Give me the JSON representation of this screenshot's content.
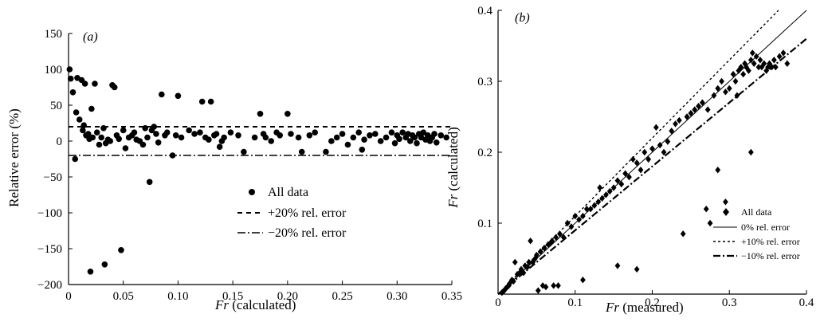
{
  "chart_data": [
    {
      "type": "scatter",
      "panel_label": "(a)",
      "xlabel_var": "Fr",
      "xlabel_rest": " (calculated)",
      "ylabel": "Relative error (%)",
      "xlim": [
        0,
        0.35
      ],
      "ylim": [
        -200,
        150
      ],
      "x_ticks": [
        0,
        0.05,
        0.1,
        0.15,
        0.2,
        0.25,
        0.3,
        0.35
      ],
      "x_tick_labels": [
        "0",
        "0.05",
        "0.10",
        "0.15",
        "0.20",
        "0.25",
        "0.30",
        "0.35"
      ],
      "y_ticks": [
        -200,
        -150,
        -100,
        -50,
        0,
        50,
        100,
        150
      ],
      "y_tick_labels": [
        "−200",
        "−150",
        "−100",
        "−50",
        "0",
        "50",
        "100",
        "150"
      ],
      "legend_position": "lower-center",
      "series": [
        {
          "name": "All data",
          "marker": "circle",
          "points": [
            [
              0.001,
              100
            ],
            [
              0.002,
              87
            ],
            [
              0.004,
              68
            ],
            [
              0.006,
              -25
            ],
            [
              0.007,
              40
            ],
            [
              0.008,
              88
            ],
            [
              0.01,
              30
            ],
            [
              0.012,
              85
            ],
            [
              0.013,
              15
            ],
            [
              0.014,
              22
            ],
            [
              0.015,
              80
            ],
            [
              0.016,
              8
            ],
            [
              0.018,
              10
            ],
            [
              0.019,
              3
            ],
            [
              0.02,
              -182
            ],
            [
              0.021,
              45
            ],
            [
              0.022,
              5
            ],
            [
              0.024,
              80
            ],
            [
              0.026,
              12
            ],
            [
              0.028,
              -5
            ],
            [
              0.03,
              5
            ],
            [
              0.032,
              18
            ],
            [
              0.033,
              -172
            ],
            [
              0.034,
              -3
            ],
            [
              0.036,
              2
            ],
            [
              0.038,
              0
            ],
            [
              0.04,
              78
            ],
            [
              0.042,
              75
            ],
            [
              0.044,
              8
            ],
            [
              0.046,
              3
            ],
            [
              0.048,
              -152
            ],
            [
              0.05,
              15
            ],
            [
              0.052,
              -10
            ],
            [
              0.055,
              5
            ],
            [
              0.058,
              8
            ],
            [
              0.06,
              12
            ],
            [
              0.062,
              2
            ],
            [
              0.065,
              0
            ],
            [
              0.068,
              -5
            ],
            [
              0.07,
              18
            ],
            [
              0.072,
              5
            ],
            [
              0.074,
              -57
            ],
            [
              0.076,
              15
            ],
            [
              0.078,
              20
            ],
            [
              0.08,
              10
            ],
            [
              0.082,
              -2
            ],
            [
              0.085,
              65
            ],
            [
              0.088,
              8
            ],
            [
              0.09,
              12
            ],
            [
              0.095,
              -20
            ],
            [
              0.098,
              8
            ],
            [
              0.1,
              63
            ],
            [
              0.103,
              5
            ],
            [
              0.11,
              15
            ],
            [
              0.115,
              10
            ],
            [
              0.12,
              12
            ],
            [
              0.122,
              55
            ],
            [
              0.125,
              5
            ],
            [
              0.128,
              2
            ],
            [
              0.13,
              55
            ],
            [
              0.133,
              8
            ],
            [
              0.135,
              10
            ],
            [
              0.138,
              -8
            ],
            [
              0.14,
              0
            ],
            [
              0.142,
              5
            ],
            [
              0.148,
              12
            ],
            [
              0.155,
              8
            ],
            [
              0.16,
              -15
            ],
            [
              0.17,
              5
            ],
            [
              0.175,
              38
            ],
            [
              0.178,
              10
            ],
            [
              0.18,
              5
            ],
            [
              0.185,
              0
            ],
            [
              0.19,
              12
            ],
            [
              0.193,
              8
            ],
            [
              0.2,
              38
            ],
            [
              0.203,
              10
            ],
            [
              0.21,
              5
            ],
            [
              0.213,
              -15
            ],
            [
              0.22,
              8
            ],
            [
              0.225,
              12
            ],
            [
              0.235,
              -15
            ],
            [
              0.24,
              0
            ],
            [
              0.245,
              5
            ],
            [
              0.25,
              10
            ],
            [
              0.255,
              -5
            ],
            [
              0.26,
              5
            ],
            [
              0.265,
              12
            ],
            [
              0.268,
              -12
            ],
            [
              0.27,
              2
            ],
            [
              0.275,
              8
            ],
            [
              0.28,
              10
            ],
            [
              0.285,
              0
            ],
            [
              0.29,
              5
            ],
            [
              0.295,
              12
            ],
            [
              0.298,
              -3
            ],
            [
              0.3,
              8
            ],
            [
              0.302,
              3
            ],
            [
              0.305,
              12
            ],
            [
              0.308,
              5
            ],
            [
              0.31,
              10
            ],
            [
              0.312,
              0
            ],
            [
              0.314,
              8
            ],
            [
              0.316,
              5
            ],
            [
              0.318,
              -3
            ],
            [
              0.32,
              10
            ],
            [
              0.322,
              5
            ],
            [
              0.324,
              12
            ],
            [
              0.326,
              2
            ],
            [
              0.328,
              8
            ],
            [
              0.33,
              0
            ],
            [
              0.332,
              5
            ],
            [
              0.334,
              10
            ],
            [
              0.336,
              -2
            ],
            [
              0.34,
              8
            ],
            [
              0.345,
              5
            ]
          ]
        },
        {
          "name": "+20% rel. error",
          "line": "dashed",
          "y": 20
        },
        {
          "name": "−20% rel. error",
          "line": "dashdot",
          "y": -20
        }
      ]
    },
    {
      "type": "scatter",
      "panel_label": "(b)",
      "xlabel_var": "Fr",
      "xlabel_rest": " (measured)",
      "ylabel_var": "Fr",
      "ylabel_rest": " (calculated)",
      "xlim": [
        0,
        0.4
      ],
      "ylim": [
        0,
        0.4
      ],
      "x_ticks": [
        0,
        0.1,
        0.2,
        0.3,
        0.4
      ],
      "x_tick_labels": [
        "0",
        "0.1",
        "0.2",
        "0.3",
        "0.4"
      ],
      "y_ticks": [
        0.1,
        0.2,
        0.3,
        0.4
      ],
      "y_tick_labels": [
        "0.1",
        "0.2",
        "0.3",
        "0.4"
      ],
      "legend_position": "lower-right",
      "series": [
        {
          "name": "All data",
          "marker": "diamond",
          "points": [
            [
              0.005,
              0.002
            ],
            [
              0.008,
              0.005
            ],
            [
              0.01,
              0.008
            ],
            [
              0.012,
              0.01
            ],
            [
              0.014,
              0.012
            ],
            [
              0.015,
              0.015
            ],
            [
              0.018,
              0.02
            ],
            [
              0.02,
              0.018
            ],
            [
              0.022,
              0.045
            ],
            [
              0.025,
              0.028
            ],
            [
              0.028,
              0.03
            ],
            [
              0.03,
              0.035
            ],
            [
              0.033,
              0.03
            ],
            [
              0.035,
              0.04
            ],
            [
              0.038,
              0.038
            ],
            [
              0.04,
              0.045
            ],
            [
              0.042,
              0.075
            ],
            [
              0.045,
              0.045
            ],
            [
              0.048,
              0.05
            ],
            [
              0.05,
              0.055
            ],
            [
              0.052,
              0.005
            ],
            [
              0.055,
              0.06
            ],
            [
              0.058,
              0.012
            ],
            [
              0.06,
              0.065
            ],
            [
              0.062,
              0.01
            ],
            [
              0.065,
              0.07
            ],
            [
              0.068,
              0.072
            ],
            [
              0.07,
              0.075
            ],
            [
              0.072,
              0.012
            ],
            [
              0.075,
              0.08
            ],
            [
              0.078,
              0.012
            ],
            [
              0.08,
              0.085
            ],
            [
              0.085,
              0.08
            ],
            [
              0.09,
              0.1
            ],
            [
              0.095,
              0.095
            ],
            [
              0.1,
              0.11
            ],
            [
              0.105,
              0.105
            ],
            [
              0.11,
              0.02
            ],
            [
              0.11,
              0.11
            ],
            [
              0.115,
              0.12
            ],
            [
              0.12,
              0.12
            ],
            [
              0.125,
              0.125
            ],
            [
              0.13,
              0.13
            ],
            [
              0.132,
              0.15
            ],
            [
              0.135,
              0.135
            ],
            [
              0.14,
              0.14
            ],
            [
              0.145,
              0.145
            ],
            [
              0.15,
              0.15
            ],
            [
              0.155,
              0.04
            ],
            [
              0.155,
              0.16
            ],
            [
              0.16,
              0.155
            ],
            [
              0.165,
              0.17
            ],
            [
              0.17,
              0.165
            ],
            [
              0.175,
              0.19
            ],
            [
              0.18,
              0.035
            ],
            [
              0.18,
              0.185
            ],
            [
              0.185,
              0.175
            ],
            [
              0.19,
              0.2
            ],
            [
              0.195,
              0.19
            ],
            [
              0.2,
              0.205
            ],
            [
              0.205,
              0.235
            ],
            [
              0.21,
              0.21
            ],
            [
              0.215,
              0.2
            ],
            [
              0.22,
              0.215
            ],
            [
              0.225,
              0.23
            ],
            [
              0.23,
              0.24
            ],
            [
              0.235,
              0.245
            ],
            [
              0.24,
              0.085
            ],
            [
              0.245,
              0.25
            ],
            [
              0.25,
              0.255
            ],
            [
              0.255,
              0.26
            ],
            [
              0.26,
              0.265
            ],
            [
              0.265,
              0.27
            ],
            [
              0.27,
              0.12
            ],
            [
              0.272,
              0.26
            ],
            [
              0.275,
              0.1
            ],
            [
              0.28,
              0.28
            ],
            [
              0.285,
              0.175
            ],
            [
              0.285,
              0.29
            ],
            [
              0.29,
              0.3
            ],
            [
              0.295,
              0.13
            ],
            [
              0.295,
              0.285
            ],
            [
              0.3,
              0.29
            ],
            [
              0.305,
              0.31
            ],
            [
              0.308,
              0.3
            ],
            [
              0.31,
              0.28
            ],
            [
              0.312,
              0.315
            ],
            [
              0.315,
              0.32
            ],
            [
              0.318,
              0.31
            ],
            [
              0.32,
              0.325
            ],
            [
              0.322,
              0.32
            ],
            [
              0.325,
              0.315
            ],
            [
              0.328,
              0.2
            ],
            [
              0.328,
              0.33
            ],
            [
              0.33,
              0.34
            ],
            [
              0.332,
              0.325
            ],
            [
              0.335,
              0.335
            ],
            [
              0.338,
              0.32
            ],
            [
              0.34,
              0.33
            ],
            [
              0.342,
              0.32
            ],
            [
              0.345,
              0.325
            ],
            [
              0.348,
              0.315
            ],
            [
              0.35,
              0.32
            ],
            [
              0.352,
              0.325
            ],
            [
              0.355,
              0.32
            ],
            [
              0.358,
              0.33
            ],
            [
              0.36,
              0.32
            ],
            [
              0.365,
              0.335
            ],
            [
              0.37,
              0.34
            ],
            [
              0.375,
              0.325
            ]
          ]
        },
        {
          "name": "0% rel. error",
          "line": "solid",
          "slope": 1.0
        },
        {
          "name": "+10% rel. error",
          "line": "dotted",
          "slope": 1.1
        },
        {
          "name": "−10% rel. error",
          "line": "dashdot",
          "slope": 0.9
        }
      ]
    }
  ]
}
